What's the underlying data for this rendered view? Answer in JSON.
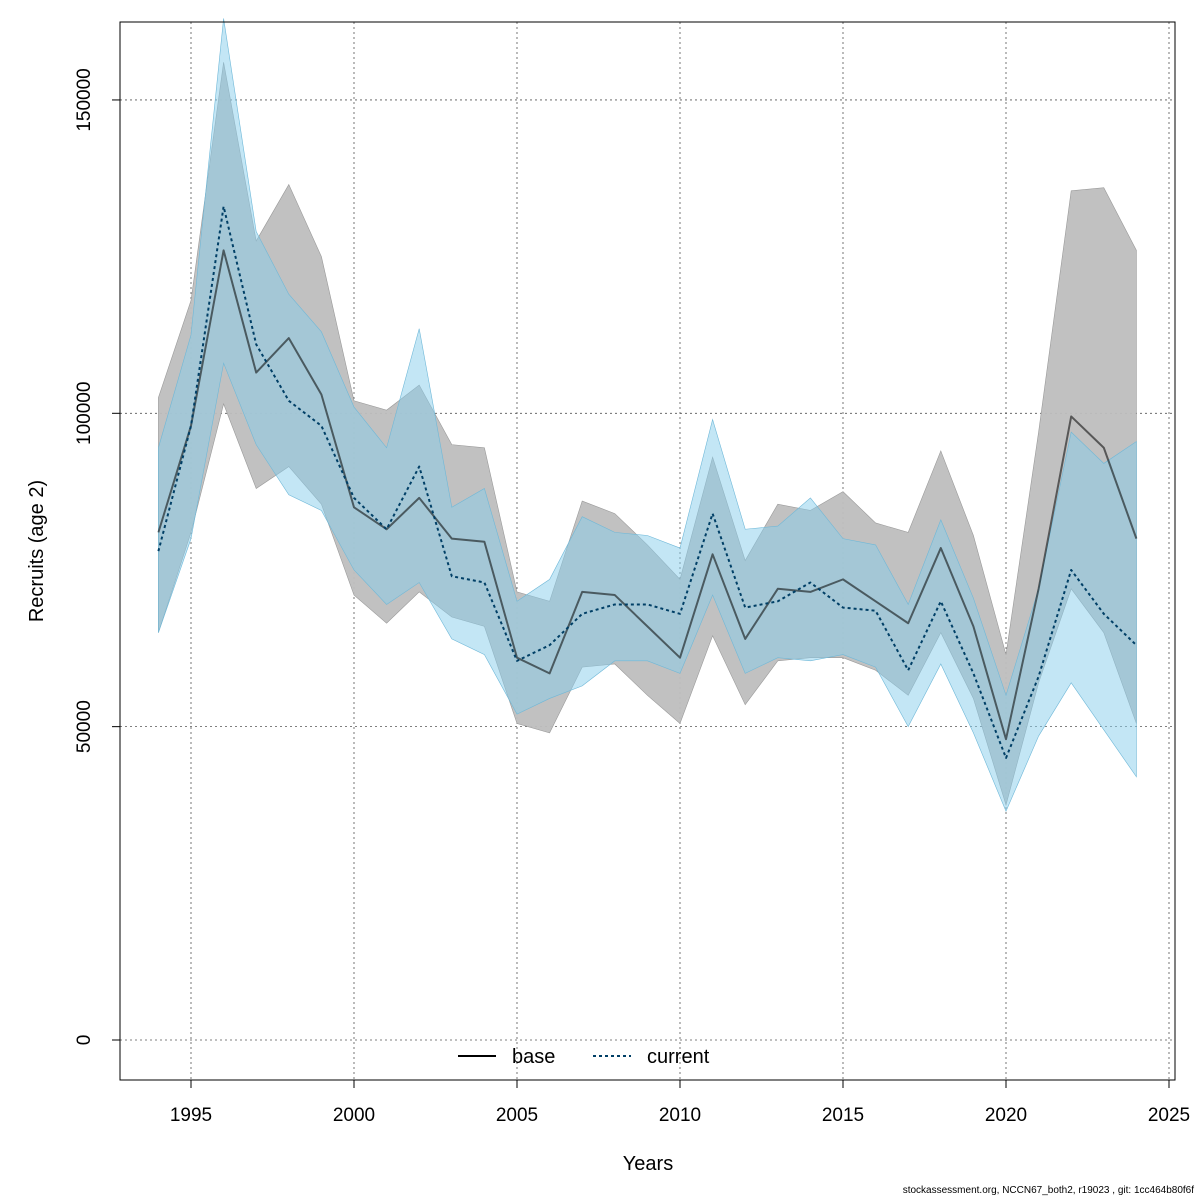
{
  "footer_text": "stockassessment.org, NCCN67_both2, r19023 , git: 1cc464b80f6f",
  "chart_data": {
    "type": "line",
    "xlabel": "Years",
    "ylabel": "Recruits (age 2)",
    "xlim": [
      1994,
      2025
    ],
    "ylim": [
      0,
      160000
    ],
    "x_ticks": [
      1995,
      2000,
      2005,
      2010,
      2015,
      2020,
      2025
    ],
    "y_ticks": [
      0,
      50000,
      100000,
      150000
    ],
    "grid": true,
    "legend_position": "bottom-center",
    "x": [
      1994,
      1995,
      1996,
      1997,
      1998,
      1999,
      2000,
      2001,
      2002,
      2003,
      2004,
      2005,
      2006,
      2007,
      2008,
      2009,
      2010,
      2011,
      2012,
      2013,
      2014,
      2015,
      2016,
      2017,
      2018,
      2019,
      2020,
      2021,
      2022,
      2023,
      2024
    ],
    "series": [
      {
        "name": "base",
        "line_style": "solid",
        "line_color": "#000000",
        "band_color": "#bebebe",
        "values": [
          81000,
          98000,
          126000,
          106500,
          112000,
          103000,
          85000,
          81500,
          86500,
          80000,
          79500,
          61000,
          58500,
          71500,
          71000,
          66000,
          61000,
          77500,
          64000,
          72000,
          71500,
          73500,
          70000,
          66500,
          78500,
          66000,
          48000,
          72000,
          99500,
          94500,
          80000
        ],
        "lower": [
          65000,
          81000,
          101500,
          88000,
          91500,
          85500,
          71000,
          66500,
          71500,
          67500,
          66000,
          50500,
          49000,
          59500,
          60000,
          55000,
          50500,
          64500,
          53500,
          60500,
          61000,
          61000,
          59000,
          55000,
          65000,
          54500,
          37500,
          57000,
          72000,
          65000,
          50500
        ],
        "upper": [
          102500,
          118000,
          156000,
          127500,
          136500,
          125000,
          102000,
          100500,
          104500,
          95000,
          94500,
          71500,
          70000,
          86000,
          84000,
          79000,
          73500,
          93000,
          76500,
          85500,
          84500,
          87500,
          82500,
          81000,
          94000,
          80500,
          61500,
          97000,
          135500,
          136000,
          126000
        ]
      },
      {
        "name": "current",
        "line_style": "dotted",
        "line_color": "#003f66",
        "band_color": "#87ceeb",
        "values": [
          78000,
          98000,
          133000,
          111000,
          102000,
          98000,
          86500,
          81500,
          91500,
          74000,
          73000,
          60500,
          63000,
          68000,
          69500,
          69500,
          68000,
          84000,
          69000,
          70000,
          73000,
          69000,
          68500,
          59000,
          70000,
          58500,
          45000,
          58000,
          75000,
          68000,
          63000
        ],
        "lower": [
          65000,
          80000,
          108000,
          95000,
          87000,
          84500,
          75000,
          69500,
          73000,
          64000,
          61500,
          52000,
          54500,
          56500,
          60500,
          60500,
          58500,
          71000,
          58500,
          61000,
          60500,
          61500,
          59500,
          50000,
          60000,
          49000,
          36500,
          48500,
          57000,
          49500,
          42000
        ],
        "upper": [
          94500,
          112500,
          163000,
          129000,
          119000,
          113000,
          101000,
          94500,
          113500,
          85000,
          88000,
          70000,
          73500,
          83500,
          81000,
          80500,
          78500,
          99000,
          81500,
          82000,
          86500,
          80000,
          79000,
          69500,
          83000,
          70500,
          55000,
          72000,
          97000,
          92000,
          95500
        ]
      }
    ]
  }
}
